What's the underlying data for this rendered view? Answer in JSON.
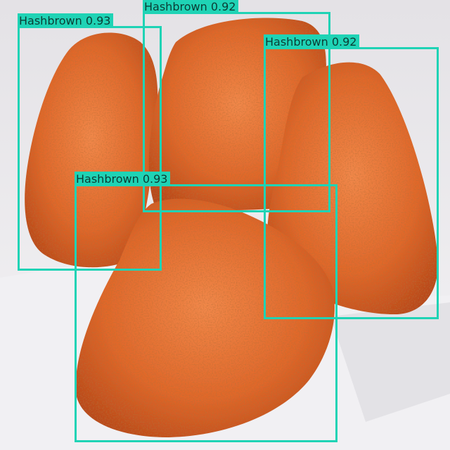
{
  "image": {
    "subject": "hashbrown patties",
    "colors": {
      "background": "#e9e7ea",
      "paper": "#f1f0f3",
      "hashbrown": "#e0672a",
      "hashbrown_highlight": "#f2884a",
      "hashbrown_shadow": "#b8471a",
      "box": "#1fd3b5",
      "label_text": "#0b3d35"
    }
  },
  "detections": [
    {
      "label": "Hashbrown",
      "score": "0.93"
    },
    {
      "label": "Hashbrown",
      "score": "0.92"
    },
    {
      "label": "Hashbrown",
      "score": "0.92"
    },
    {
      "label": "Hashbrown",
      "score": "0.93"
    }
  ]
}
